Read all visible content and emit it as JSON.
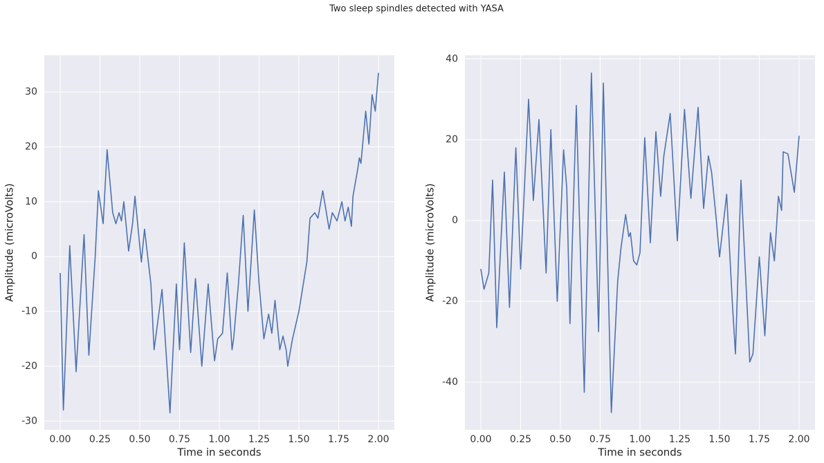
{
  "title": "Two sleep spindles detected with YASA",
  "chart_data": [
    {
      "type": "line",
      "xlabel": "Time in seconds",
      "ylabel": "Amplitude (microVolts)",
      "color": "#4c72b0",
      "grid": true,
      "xlim": [
        -0.1,
        2.1
      ],
      "ylim": [
        -31.6,
        36.7
      ],
      "xticks": [
        {
          "value": 0,
          "label": "0.00"
        },
        {
          "value": 0.25,
          "label": "0.25"
        },
        {
          "value": 0.5,
          "label": "0.50"
        },
        {
          "value": 0.75,
          "label": "0.75"
        },
        {
          "value": 1,
          "label": "1.00"
        },
        {
          "value": 1.25,
          "label": "1.25"
        },
        {
          "value": 1.5,
          "label": "1.50"
        },
        {
          "value": 1.75,
          "label": "1.75"
        },
        {
          "value": 2,
          "label": "2.00"
        }
      ],
      "yticks": [
        -30,
        -20,
        -10,
        0,
        10,
        20,
        30
      ],
      "x": [
        0,
        0.02,
        0.06,
        0.1,
        0.15,
        0.18,
        0.22,
        0.24,
        0.27,
        0.295,
        0.33,
        0.35,
        0.37,
        0.385,
        0.4,
        0.43,
        0.455,
        0.47,
        0.51,
        0.53,
        0.57,
        0.59,
        0.64,
        0.66,
        0.69,
        0.73,
        0.75,
        0.78,
        0.82,
        0.85,
        0.89,
        0.93,
        0.97,
        0.99,
        1.02,
        1.05,
        1.08,
        1.09,
        1.12,
        1.15,
        1.18,
        1.22,
        1.25,
        1.28,
        1.31,
        1.33,
        1.35,
        1.38,
        1.4,
        1.42,
        1.43,
        1.46,
        1.5,
        1.55,
        1.57,
        1.6,
        1.62,
        1.65,
        1.69,
        1.71,
        1.74,
        1.77,
        1.79,
        1.81,
        1.83,
        1.84,
        1.87,
        1.88,
        1.89,
        1.92,
        1.94,
        1.96,
        1.98,
        2.0
      ],
      "values": [
        -3,
        -28,
        2,
        -21,
        4,
        -18,
        0,
        12,
        6,
        19.5,
        8,
        6,
        8,
        6.5,
        10,
        1,
        6,
        11,
        -1,
        5,
        -5,
        -17,
        -6,
        -15,
        -28.5,
        -5,
        -17,
        2.5,
        -17.5,
        -4,
        -20,
        -5,
        -19,
        -15,
        -14,
        -3,
        -17,
        -15,
        -5,
        7.5,
        -10,
        8.5,
        -5,
        -15,
        -10.5,
        -14,
        -8,
        -17,
        -14.5,
        -17,
        -20,
        -15,
        -10,
        -1,
        7,
        8,
        7,
        12,
        5,
        8,
        6.5,
        10,
        6.5,
        9,
        5.5,
        11,
        16,
        18,
        17,
        26.5,
        20.5,
        29.5,
        26.5,
        33.5
      ]
    },
    {
      "type": "line",
      "xlabel": "Time in seconds",
      "ylabel": "Amplitude (microVolts)",
      "color": "#4c72b0",
      "grid": true,
      "xlim": [
        -0.1,
        2.1
      ],
      "ylim": [
        -51.8,
        40.9
      ],
      "xticks": [
        {
          "value": 0,
          "label": "0.00"
        },
        {
          "value": 0.25,
          "label": "0.25"
        },
        {
          "value": 0.5,
          "label": "0.50"
        },
        {
          "value": 0.75,
          "label": "0.75"
        },
        {
          "value": 1,
          "label": "1.00"
        },
        {
          "value": 1.25,
          "label": "1.25"
        },
        {
          "value": 1.5,
          "label": "1.50"
        },
        {
          "value": 1.75,
          "label": "1.75"
        },
        {
          "value": 2,
          "label": "2.00"
        }
      ],
      "yticks": [
        -40,
        -20,
        0,
        20,
        40
      ],
      "x": [
        0,
        0.02,
        0.05,
        0.074,
        0.1,
        0.148,
        0.18,
        0.22,
        0.25,
        0.3,
        0.33,
        0.365,
        0.41,
        0.44,
        0.48,
        0.52,
        0.54,
        0.56,
        0.6,
        0.65,
        0.695,
        0.74,
        0.77,
        0.82,
        0.86,
        0.88,
        0.91,
        0.93,
        0.94,
        0.96,
        0.98,
        1.0,
        1.03,
        1.065,
        1.1,
        1.13,
        1.15,
        1.19,
        1.235,
        1.28,
        1.32,
        1.365,
        1.4,
        1.43,
        1.45,
        1.48,
        1.5,
        1.545,
        1.58,
        1.6,
        1.635,
        1.69,
        1.71,
        1.75,
        1.785,
        1.82,
        1.845,
        1.87,
        1.89,
        1.9,
        1.93,
        1.97,
        2.0
      ],
      "values": [
        -12,
        -17,
        -13,
        10,
        -26.5,
        12,
        -21.5,
        18,
        -12,
        30,
        5,
        25,
        -13,
        22.5,
        -20,
        17.5,
        8,
        -25.5,
        28.5,
        -42.5,
        36.5,
        -27.5,
        34,
        -47.5,
        -15,
        -7,
        1.5,
        -4,
        -3,
        -10,
        -11,
        -8,
        20.5,
        -5.5,
        22,
        6,
        16,
        26.5,
        -5,
        27.5,
        5.5,
        28,
        3,
        16,
        12,
        0,
        -9,
        6.5,
        -20,
        -33,
        10,
        -35,
        -33,
        -9,
        -28.5,
        -3,
        -10,
        6,
        2.5,
        17,
        16.5,
        7,
        21
      ]
    }
  ]
}
